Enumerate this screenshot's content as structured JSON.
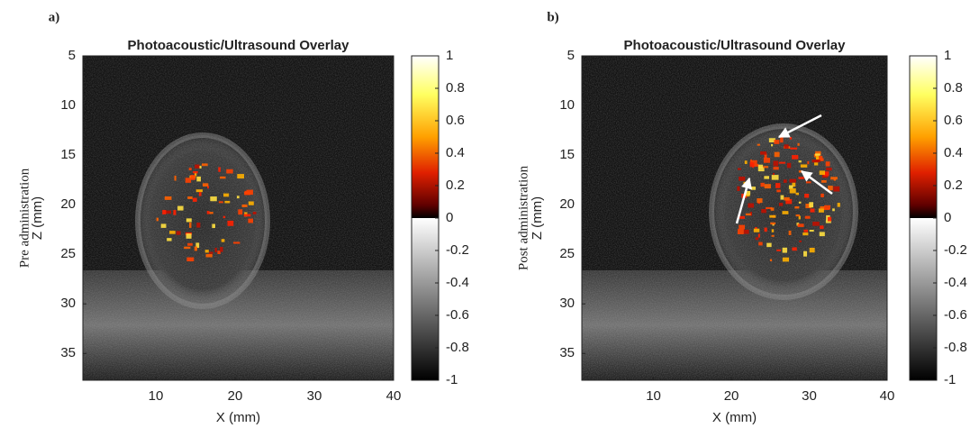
{
  "chart_data": [
    {
      "type": "image",
      "panel_label": "a)",
      "title": "Photoacoustic/Ultrasound Overlay",
      "outer_ylabel": "Pre administration",
      "ylabel": "Z (mm)",
      "xlabel": "X (mm)",
      "xlim": [
        0.8,
        40
      ],
      "ylim": [
        5,
        37.7
      ],
      "xticks": [
        10,
        20,
        30,
        40
      ],
      "yticks": [
        5,
        10,
        15,
        20,
        25,
        30,
        35
      ],
      "clim": [
        -1,
        1
      ],
      "cticks": [
        1,
        0.8,
        0.6,
        0.4,
        0.2,
        0,
        -0.2,
        -0.4,
        -0.6,
        -0.8,
        -1
      ]
    },
    {
      "type": "image",
      "panel_label": "b)",
      "title": "Photoacoustic/Ultrasound Overlay",
      "outer_ylabel": "Post administration",
      "ylabel": "Z (mm)",
      "xlabel": "X (mm)",
      "xlim": [
        0.8,
        40
      ],
      "ylim": [
        5,
        37.7
      ],
      "xticks": [
        10,
        20,
        30,
        40
      ],
      "yticks": [
        5,
        10,
        15,
        20,
        25,
        30,
        35
      ],
      "clim": [
        -1,
        1
      ],
      "cticks": [
        1,
        0.8,
        0.6,
        0.4,
        0.2,
        0,
        -0.2,
        -0.4,
        -0.6,
        -0.8,
        -1
      ]
    }
  ]
}
